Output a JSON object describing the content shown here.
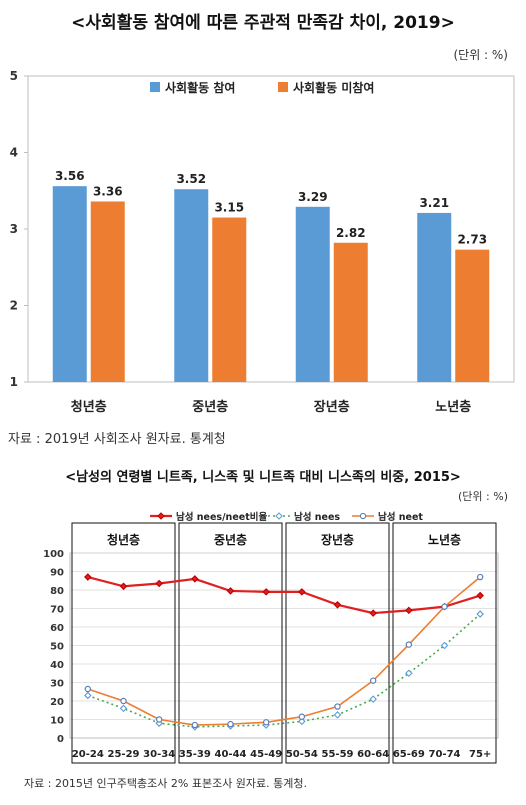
{
  "chart_data": [
    {
      "type": "bar",
      "title": "<사회활동 참여에 따른 주관적 만족감 차이, 2019>",
      "unit_note": "(단위 : %)",
      "categories": [
        "청년층",
        "중년층",
        "장년층",
        "노년층"
      ],
      "series": [
        {
          "name": "사회활동 참여",
          "values": [
            3.56,
            3.52,
            3.29,
            3.21
          ],
          "color": "#5B9BD5"
        },
        {
          "name": "사회활동 미참여",
          "values": [
            3.36,
            3.15,
            2.82,
            2.73
          ],
          "color": "#ED7D31"
        }
      ],
      "ylim": [
        1,
        5
      ],
      "yticks": [
        1,
        2,
        3,
        4,
        5
      ],
      "legend": "top-center",
      "grid": false,
      "source": "자료 : 2019년 사회조사 원자료. 통계청"
    },
    {
      "type": "line",
      "title": "<남성의 연령별 니트족, 니스족 및 니트족 대비 니스족의 비중, 2015>",
      "unit_note": "(단위 : %)",
      "x": [
        "20-24",
        "25-29",
        "30-34",
        "35-39",
        "40-44",
        "45-49",
        "50-54",
        "55-59",
        "60-64",
        "65-69",
        "70-74",
        "75+"
      ],
      "groups": [
        {
          "label": "청년층",
          "from": 0,
          "to": 2
        },
        {
          "label": "중년층",
          "from": 3,
          "to": 5
        },
        {
          "label": "장년층",
          "from": 6,
          "to": 8
        },
        {
          "label": "노년층",
          "from": 9,
          "to": 11
        }
      ],
      "series": [
        {
          "name": "남성 nees/neet비율",
          "values": [
            87,
            82,
            83.5,
            86,
            79.5,
            79,
            79,
            72,
            67.5,
            69,
            71,
            77
          ],
          "color": "#E02020"
        },
        {
          "name": "남성 nees",
          "values": [
            23,
            16,
            8,
            6,
            6.5,
            7,
            9,
            12.5,
            21,
            35,
            50,
            67
          ],
          "color": "#4CA84C"
        },
        {
          "name": "남성 neet",
          "values": [
            26.5,
            20,
            10,
            7,
            7.5,
            8.5,
            11.5,
            17,
            31,
            50.5,
            71,
            87
          ],
          "color": "#ED7D31"
        }
      ],
      "ylim": [
        0,
        100
      ],
      "yticks": [
        0,
        10,
        20,
        30,
        40,
        50,
        60,
        70,
        80,
        90,
        100
      ],
      "legend": "top-center",
      "grid": true,
      "source": "자료 : 2015년 인구주택총조사 2% 표본조사 원자료. 통계청."
    }
  ]
}
